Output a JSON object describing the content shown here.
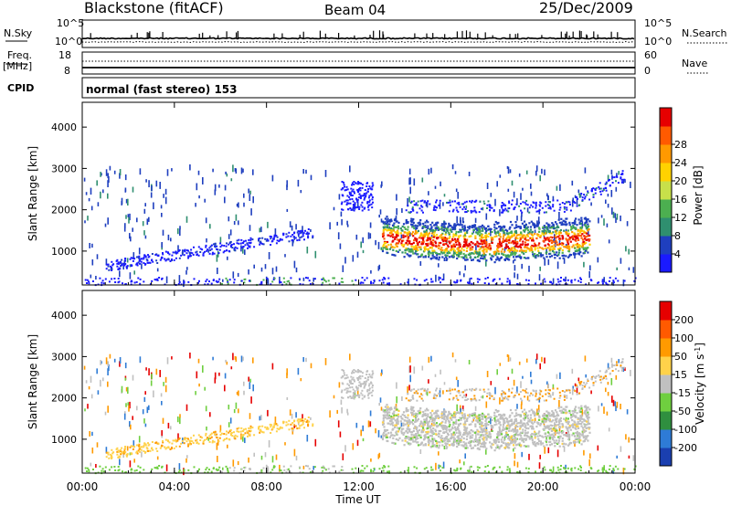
{
  "header": {
    "station": "Blackstone (fitACF)",
    "beam": "Beam 04",
    "date": "25/Dec/2009"
  },
  "top_panels": {
    "nsky_label": "N.Sky",
    "nsky_ticks": [
      "10^5",
      "10^0"
    ],
    "nsearch_label": "N.Search",
    "nsearch_ticks": [
      "10^5",
      "10^0"
    ],
    "freq_label": "Freq.",
    "freq_unit": "[MHz]",
    "freq_ticks": [
      "18",
      "8"
    ],
    "nave_label": "Nave",
    "nave_ticks": [
      "60",
      "0"
    ],
    "cpid_label": "CPID",
    "cpid_text": "normal (fast stereo) 153"
  },
  "chart_data": [
    {
      "type": "heatmap",
      "name": "power",
      "ylabel": "Slant Range [km]",
      "ylim": [
        180,
        4600
      ],
      "yticks": [
        "1000",
        "2000",
        "3000",
        "4000"
      ],
      "x_ticks": [
        "00:00",
        "04:00",
        "08:00",
        "12:00",
        "16:00",
        "20:00",
        "00:00"
      ],
      "colorbar": {
        "label": "Power [dB]",
        "ticks": [
          "4",
          "8",
          "12",
          "16",
          "20",
          "24",
          "28"
        ],
        "colors": [
          "#1a1aff",
          "#1f3fbf",
          "#2f8f6f",
          "#4caf50",
          "#c8e04a",
          "#ffd200",
          "#ff9900",
          "#ff5a00",
          "#e60000"
        ]
      }
    },
    {
      "type": "heatmap",
      "name": "velocity",
      "ylabel": "Slant Range [km]",
      "ylim": [
        180,
        4600
      ],
      "yticks": [
        "1000",
        "2000",
        "3000",
        "4000"
      ],
      "xlabel": "Time UT",
      "x_ticks": [
        "00:00",
        "04:00",
        "08:00",
        "12:00",
        "16:00",
        "20:00",
        "00:00"
      ],
      "colorbar": {
        "label_prefix": "Velocity [m s",
        "label_sup": "-1",
        "label_suffix": "]",
        "ticks": [
          "200",
          "100",
          "50",
          "15",
          "-15",
          "-50",
          "-100",
          "-200"
        ],
        "colors": [
          "#1a3fb0",
          "#2e7bd6",
          "#2f8f3f",
          "#6fcf3f",
          "#c0c0c0",
          "#ffd24a",
          "#ff9a00",
          "#ff5a00",
          "#e60000"
        ]
      }
    }
  ]
}
